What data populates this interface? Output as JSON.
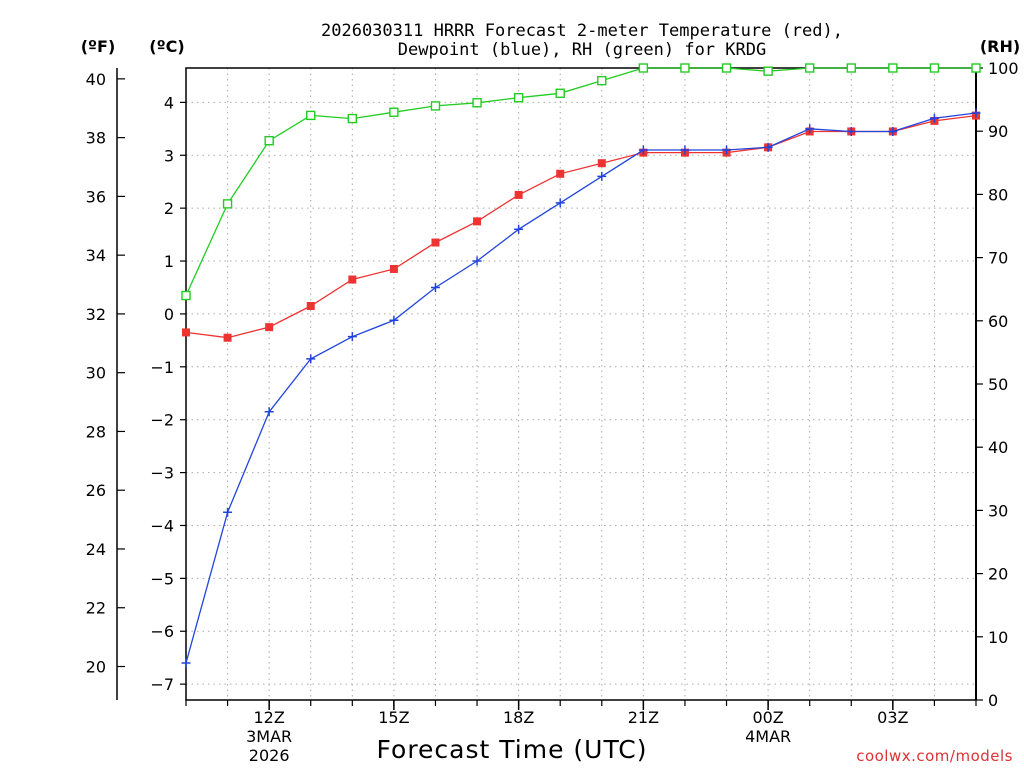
{
  "chart_data": {
    "type": "line",
    "title_line1": "2026030311 HRRR Forecast 2-meter Temperature (red),",
    "title_line2": "Dewpoint (blue), RH (green) for KRDG",
    "xlabel": "Forecast Time (UTC)",
    "unit_f": "(ºF)",
    "unit_c": "(ºC)",
    "unit_rh": "(RH)",
    "watermark": "coolwx.com/models",
    "colors": {
      "temperature": "#ee3333",
      "dewpoint": "#2244dd",
      "rh": "#22cc22",
      "grid": "#aaaaaa"
    },
    "forecast_hours": [
      10,
      11,
      12,
      13,
      14,
      15,
      16,
      17,
      18,
      19,
      20,
      21,
      22,
      23,
      24,
      25,
      26,
      27,
      28,
      29
    ],
    "x_ticks": [
      {
        "hour": 12,
        "label": "12Z",
        "sub1": "3MAR",
        "sub2": "2026"
      },
      {
        "hour": 15,
        "label": "15Z",
        "sub1": "",
        "sub2": ""
      },
      {
        "hour": 18,
        "label": "18Z",
        "sub1": "",
        "sub2": ""
      },
      {
        "hour": 21,
        "label": "21Z",
        "sub1": "",
        "sub2": ""
      },
      {
        "hour": 24,
        "label": "00Z",
        "sub1": "4MAR",
        "sub2": ""
      },
      {
        "hour": 27,
        "label": "03Z",
        "sub1": "",
        "sub2": ""
      }
    ],
    "x_range": [
      10,
      29
    ],
    "y_celsius_range": [
      -7.3,
      4.65
    ],
    "y_rh_range": [
      0,
      100
    ],
    "y_celsius_ticks": [
      -7,
      -6,
      -5,
      -4,
      -3,
      -2,
      -1,
      0,
      1,
      2,
      3,
      4
    ],
    "y_fahrenheit_ticks": [
      20,
      22,
      24,
      26,
      28,
      30,
      32,
      34,
      36,
      38,
      40
    ],
    "y_rh_ticks": [
      0,
      10,
      20,
      30,
      40,
      50,
      60,
      70,
      80,
      90,
      100
    ],
    "series": [
      {
        "name": "Temperature",
        "unit": "C",
        "marker": "square",
        "values": [
          -0.35,
          -0.45,
          -0.25,
          0.15,
          0.65,
          0.85,
          1.35,
          1.75,
          2.25,
          2.65,
          2.85,
          3.05,
          3.05,
          3.05,
          3.15,
          3.45,
          3.45,
          3.45,
          3.65,
          3.75
        ]
      },
      {
        "name": "Dewpoint",
        "unit": "C",
        "marker": "plus",
        "values": [
          -6.6,
          -3.75,
          -1.85,
          -0.85,
          -0.43,
          -0.12,
          0.5,
          1.0,
          1.6,
          2.1,
          2.6,
          3.1,
          3.1,
          3.1,
          3.15,
          3.5,
          3.45,
          3.45,
          3.7,
          3.8
        ]
      },
      {
        "name": "RH",
        "unit": "%",
        "marker": "open-square",
        "values": [
          64,
          78.5,
          88.5,
          92.5,
          92,
          93,
          94,
          94.5,
          95.3,
          96,
          98,
          100,
          100,
          100,
          99.5,
          100,
          100,
          100,
          100,
          100
        ]
      }
    ]
  }
}
